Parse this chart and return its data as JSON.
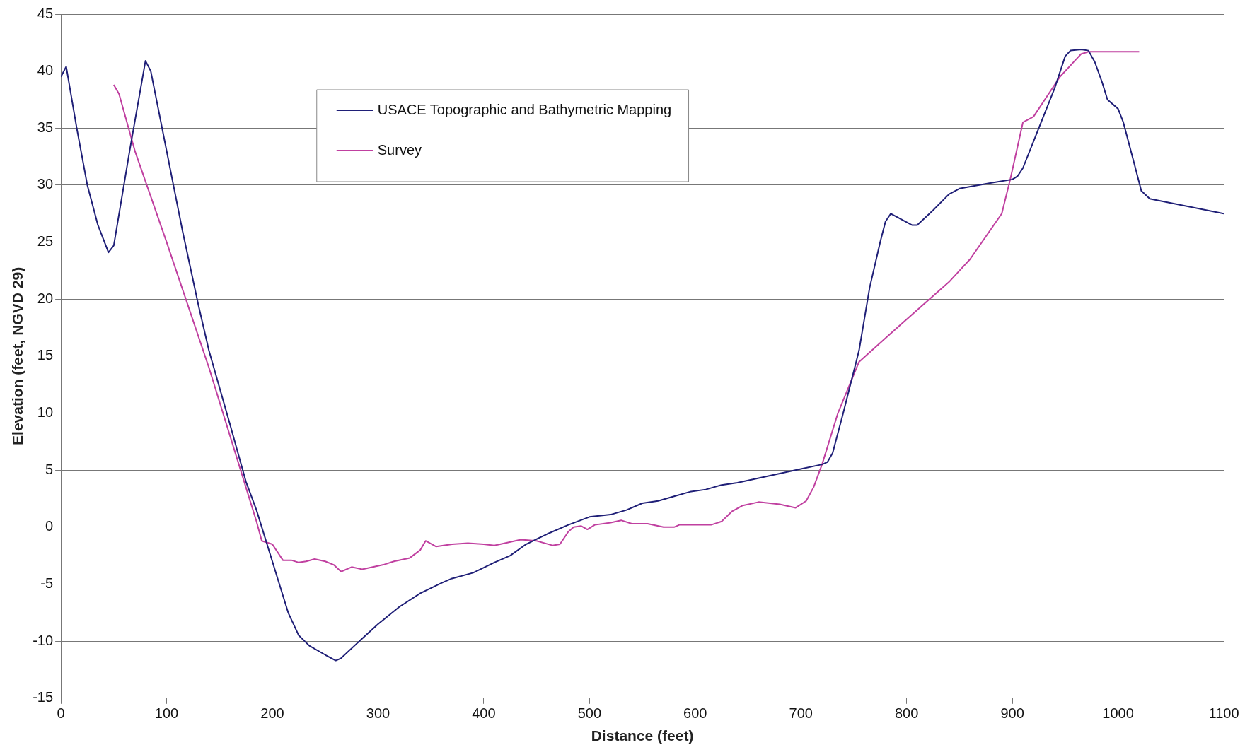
{
  "chart_data": {
    "type": "line",
    "xlabel": "Distance (feet)",
    "ylabel": "Elevation (feet, NGVD 29)",
    "xlim": [
      0,
      1100
    ],
    "xticks": [
      0,
      100,
      200,
      300,
      400,
      500,
      600,
      700,
      800,
      900,
      1000,
      1100
    ],
    "ylim": [
      -15,
      45
    ],
    "yticks": [
      -15,
      -10,
      -5,
      0,
      5,
      10,
      15,
      20,
      25,
      30,
      35,
      40,
      45
    ],
    "grid": "y",
    "legend": "top",
    "marker": "none",
    "line_style": "solid",
    "series": [
      {
        "name": "USACE Topographic and Bathymetric Mapping",
        "color": "#1f1f77",
        "x": [
          0,
          5,
          15,
          25,
          35,
          45,
          50,
          65,
          80,
          85,
          100,
          115,
          130,
          140,
          160,
          175,
          185,
          195,
          205,
          215,
          225,
          235,
          250,
          260,
          265,
          280,
          300,
          320,
          340,
          360,
          370,
          390,
          410,
          425,
          440,
          460,
          480,
          500,
          520,
          535,
          550,
          565,
          580,
          595,
          610,
          625,
          640,
          660,
          680,
          700,
          720,
          725,
          730,
          740,
          755,
          765,
          775,
          780,
          785,
          795,
          805,
          810,
          825,
          840,
          850,
          880,
          900,
          905,
          910,
          925,
          940,
          950,
          955,
          965,
          972,
          978,
          985,
          990,
          1000,
          1005,
          1015,
          1022,
          1030,
          1100
        ],
        "values": [
          39.5,
          40.4,
          35,
          30,
          26.5,
          24.1,
          24.7,
          33,
          40.9,
          40,
          33,
          26,
          19.5,
          15.5,
          9,
          4,
          1.5,
          -1.5,
          -4.5,
          -7.5,
          -9.5,
          -10.4,
          -11.2,
          -11.7,
          -11.5,
          -10.2,
          -8.5,
          -7,
          -5.8,
          -4.9,
          -4.5,
          -4,
          -3.1,
          -2.5,
          -1.5,
          -0.6,
          0.2,
          0.9,
          1.1,
          1.5,
          2.1,
          2.3,
          2.7,
          3.1,
          3.3,
          3.7,
          3.9,
          4.3,
          4.7,
          5.1,
          5.5,
          5.7,
          6.5,
          10,
          15.5,
          21,
          25,
          26.8,
          27.5,
          27,
          26.5,
          26.5,
          27.8,
          29.2,
          29.7,
          30.2,
          30.5,
          30.8,
          31.5,
          35,
          38.5,
          41.3,
          41.8,
          41.9,
          41.8,
          40.8,
          39,
          37.5,
          36.7,
          35.5,
          32,
          29.5,
          28.8,
          27.5
        ]
      },
      {
        "name": "Survey",
        "color": "#c040a0",
        "x": [
          50,
          55,
          70,
          100,
          140,
          180,
          185,
          190,
          200,
          210,
          218,
          225,
          232,
          240,
          250,
          258,
          265,
          275,
          285,
          295,
          305,
          315,
          330,
          340,
          345,
          355,
          370,
          385,
          400,
          410,
          420,
          435,
          450,
          465,
          472,
          480,
          485,
          492,
          498,
          505,
          520,
          530,
          540,
          555,
          570,
          580,
          585,
          600,
          615,
          625,
          635,
          645,
          660,
          680,
          695,
          705,
          712,
          720,
          735,
          755,
          785,
          840,
          850,
          860,
          890,
          898,
          910,
          920,
          945,
          965,
          972,
          1020
        ],
        "values": [
          38.8,
          38,
          33,
          25,
          14,
          2,
          0.5,
          -1.2,
          -1.5,
          -2.9,
          -2.9,
          -3.1,
          -3,
          -2.8,
          -3,
          -3.3,
          -3.9,
          -3.5,
          -3.7,
          -3.5,
          -3.3,
          -3,
          -2.7,
          -2,
          -1.2,
          -1.7,
          -1.5,
          -1.4,
          -1.5,
          -1.6,
          -1.4,
          -1.1,
          -1.2,
          -1.6,
          -1.5,
          -0.4,
          0,
          0.1,
          -0.2,
          0.2,
          0.4,
          0.6,
          0.3,
          0.3,
          0,
          0,
          0.2,
          0.2,
          0.2,
          0.5,
          1.4,
          1.9,
          2.2,
          2,
          1.7,
          2.3,
          3.5,
          5.5,
          10,
          14.5,
          17,
          21.5,
          22.5,
          23.5,
          27.5,
          30.5,
          35.5,
          36,
          39.5,
          41.5,
          41.7,
          41.7
        ]
      }
    ]
  }
}
